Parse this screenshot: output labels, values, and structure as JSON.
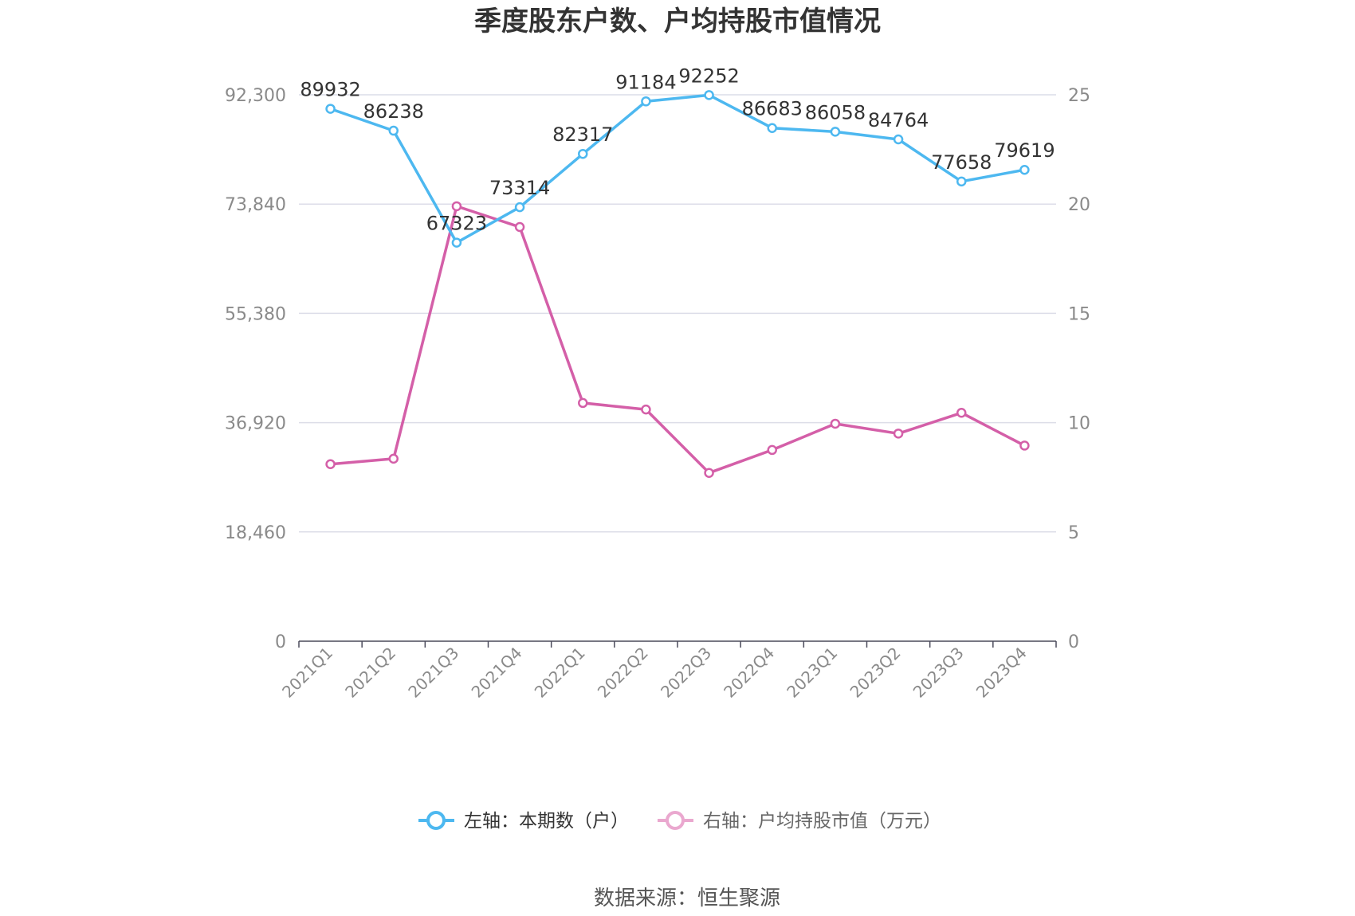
{
  "chart_data": {
    "type": "line",
    "title": "季度股东户数、户均持股市值情况",
    "categories": [
      "2021Q1",
      "2021Q2",
      "2021Q3",
      "2021Q4",
      "2022Q1",
      "2022Q2",
      "2022Q3",
      "2022Q4",
      "2023Q1",
      "2023Q2",
      "2023Q3",
      "2023Q4"
    ],
    "left_axis": {
      "ticks": [
        "0",
        "18,460",
        "36,920",
        "55,380",
        "73,840",
        "92,300"
      ],
      "ylim": [
        0,
        92300
      ]
    },
    "right_axis": {
      "ticks": [
        "0",
        "5",
        "10",
        "15",
        "20",
        "25"
      ],
      "ylim": [
        0,
        25
      ]
    },
    "grid": true,
    "legend_position": "bottom",
    "series": [
      {
        "name": "左轴：本期数（户）",
        "axis": "left",
        "color": "#4db8f0",
        "values": [
          89932,
          86238,
          67323,
          73314,
          82317,
          91184,
          92252,
          86683,
          86058,
          84764,
          77658,
          79619
        ],
        "labels": [
          "89932",
          "86238",
          "67323",
          "73314",
          "82317",
          "91184",
          "92252",
          "86683",
          "86058",
          "84764",
          "77658",
          "79619"
        ]
      },
      {
        "name": "右轴：户均持股市值（万元）",
        "axis": "right",
        "color": "#d45fa8",
        "values": [
          8.1,
          8.35,
          19.9,
          18.95,
          10.9,
          10.6,
          7.7,
          8.75,
          9.95,
          9.5,
          10.45,
          8.95
        ]
      }
    ],
    "source": "数据来源：恒生聚源"
  }
}
